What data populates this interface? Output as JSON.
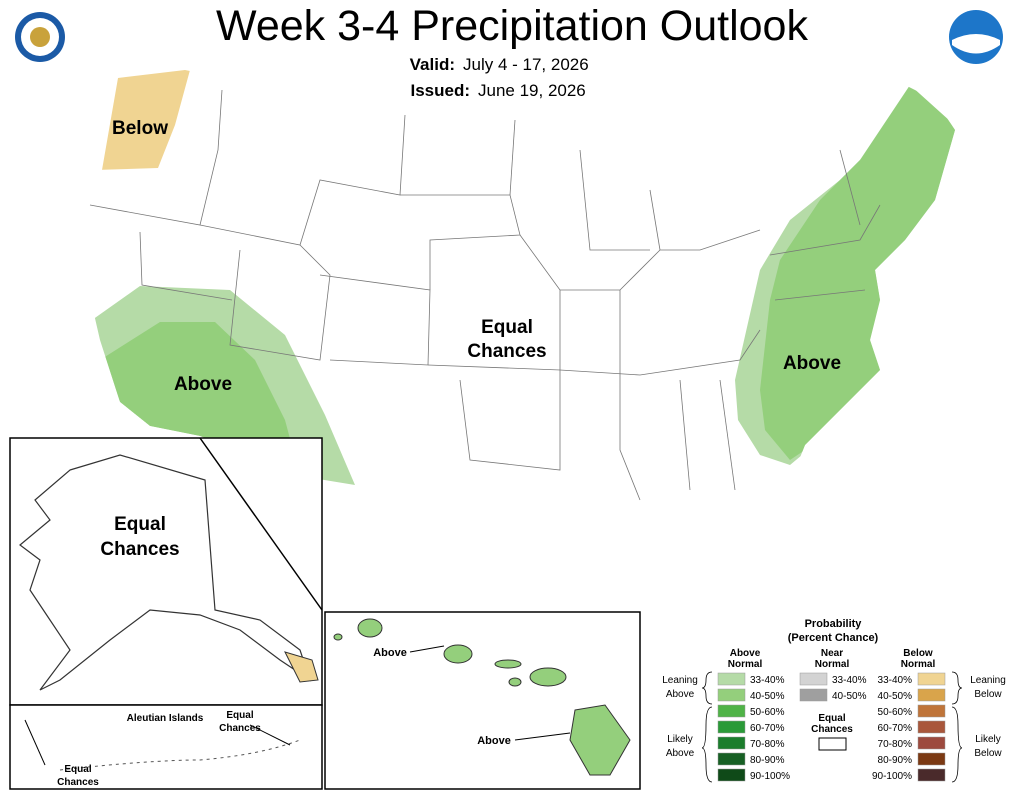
{
  "header": {
    "title": "Week 3-4 Precipitation Outlook",
    "valid_label": "Valid:",
    "valid": "July 4 - 17, 2026",
    "issued_label": "Issued:",
    "issued": "June 19, 2026"
  },
  "conus_labels": [
    [
      "Below"
    ],
    [
      "Above"
    ],
    [
      "Equal",
      "Chances"
    ],
    [
      "Above"
    ]
  ],
  "alaska_label": [
    "Equal",
    "Chances"
  ],
  "aleutians": {
    "title": "Aleutian Islands",
    "labels": [
      [
        "Equal",
        "Chances"
      ],
      [
        "Equal",
        "Chances"
      ]
    ]
  },
  "hawaii_labels": [
    "Above",
    "Above"
  ],
  "legend": {
    "title": "Probability",
    "subtitle": "(Percent Chance)",
    "above": {
      "header": [
        "Above",
        "Normal"
      ],
      "bins": [
        {
          "label": "33-40%",
          "color": "#b5dba7"
        },
        {
          "label": "40-50%",
          "color": "#94cf7c"
        },
        {
          "label": "50-60%",
          "color": "#4fb347"
        },
        {
          "label": "60-70%",
          "color": "#2a9a38"
        },
        {
          "label": "70-80%",
          "color": "#1b7d2c"
        },
        {
          "label": "80-90%",
          "color": "#176024"
        },
        {
          "label": "90-100%",
          "color": "#0f4a18"
        }
      ]
    },
    "near": {
      "header": [
        "Near",
        "Normal"
      ],
      "bins": [
        {
          "label": "33-40%",
          "color": "#d3d3d3"
        },
        {
          "label": "40-50%",
          "color": "#9f9f9f"
        }
      ]
    },
    "below": {
      "header": [
        "Below",
        "Normal"
      ],
      "bins": [
        {
          "label": "33-40%",
          "color": "#f0d492"
        },
        {
          "label": "40-50%",
          "color": "#d9a44b"
        },
        {
          "label": "50-60%",
          "color": "#bf7439"
        },
        {
          "label": "60-70%",
          "color": "#a9573b"
        },
        {
          "label": "70-80%",
          "color": "#9d4a3e"
        },
        {
          "label": "80-90%",
          "color": "#7b3913"
        },
        {
          "label": "90-100%",
          "color": "#4a2a2b"
        }
      ]
    },
    "equal_chances": [
      "Equal",
      "Chances"
    ],
    "leaning_above": [
      "Leaning",
      "Above"
    ],
    "likely_above": [
      "Likely",
      "Above"
    ],
    "leaning_below": [
      "Leaning",
      "Below"
    ],
    "likely_below": [
      "Likely",
      "Below"
    ]
  }
}
